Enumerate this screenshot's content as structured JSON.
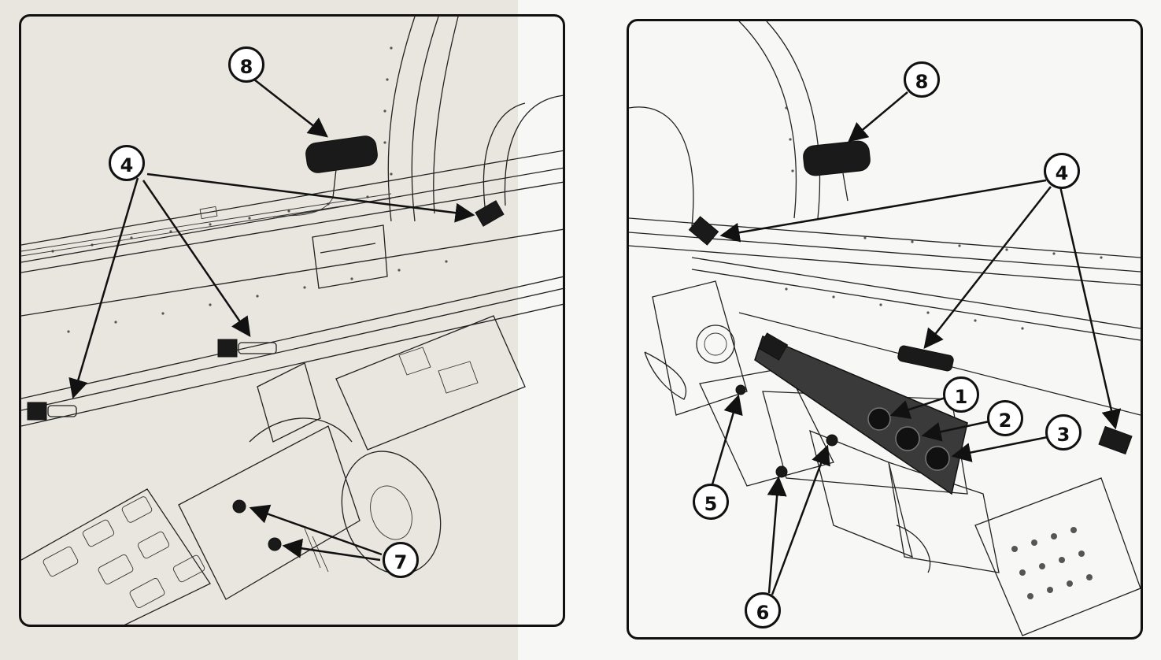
{
  "callouts": {
    "left": [
      {
        "id": "8",
        "label": "8"
      },
      {
        "id": "4",
        "label": "4"
      },
      {
        "id": "7",
        "label": "7"
      }
    ],
    "right": [
      {
        "id": "8",
        "label": "8"
      },
      {
        "id": "4",
        "label": "4"
      },
      {
        "id": "1",
        "label": "1"
      },
      {
        "id": "2",
        "label": "2"
      },
      {
        "id": "3",
        "label": "3"
      },
      {
        "id": "5",
        "label": "5"
      },
      {
        "id": "6",
        "label": "6"
      }
    ]
  },
  "colors": {
    "ink": "#111111",
    "paper_left": "#e8e6df",
    "paper_right": "#f7f7f5"
  }
}
